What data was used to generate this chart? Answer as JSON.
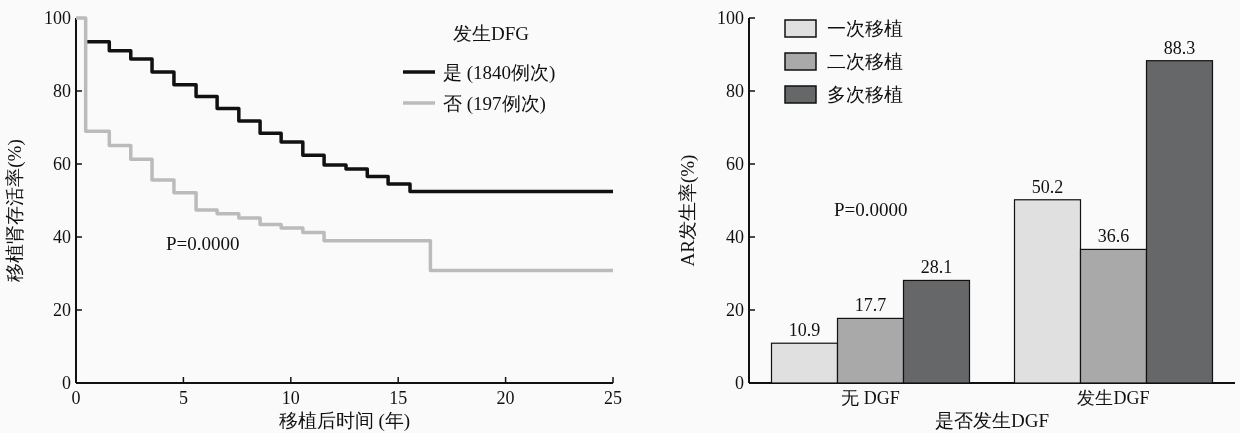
{
  "chart_data": [
    {
      "type": "step",
      "xlabel": "移植后时间 (年)",
      "ylabel": "移植肾存活率(%)",
      "legend_title": "发生DFG",
      "legend": "top right",
      "xlim": [
        0,
        25
      ],
      "xticks": [
        0,
        5,
        10,
        15,
        20,
        25
      ],
      "ylim": [
        0,
        100
      ],
      "yticks": [
        0,
        20,
        40,
        60,
        80,
        100
      ],
      "annotations": [
        "P=0.0000"
      ],
      "series": [
        {
          "name": "是 (1840例次)",
          "color": "#111111",
          "x": [
            0.45,
            1.55,
            2.55,
            3.54,
            4.56,
            5.59,
            6.57,
            7.58,
            8.57,
            9.55,
            10.56,
            11.55,
            12.57,
            13.56,
            14.53,
            15.55,
            25
          ],
          "values": [
            93.5,
            91,
            88.8,
            85.2,
            81.7,
            78.5,
            75.2,
            71.8,
            68.4,
            66,
            62.4,
            59.7,
            58.6,
            56.6,
            54.5,
            52.5,
            52.5
          ]
        },
        {
          "name": "否 (197例次)",
          "color": "#bbbbbb",
          "x": [
            0,
            0.45,
            1.55,
            2.55,
            3.54,
            4.56,
            5.59,
            6.57,
            7.58,
            8.57,
            9.55,
            10.56,
            11.55,
            16.5,
            25
          ],
          "values": [
            100,
            69,
            65.1,
            61.3,
            55.6,
            52.1,
            47.4,
            46.4,
            45.2,
            43.4,
            42.5,
            41.2,
            39,
            30.8,
            30.8
          ]
        }
      ]
    },
    {
      "type": "bar",
      "xlabel": "是否发生DGF",
      "ylabel": "AR发生率(%)",
      "legend": "top left",
      "data_labels": true,
      "categories": [
        "无 DGF",
        "发生DGF"
      ],
      "ylim": [
        0,
        100
      ],
      "yticks": [
        0,
        20,
        40,
        60,
        80,
        100
      ],
      "annotations": [
        "P=0.0000"
      ],
      "series": [
        {
          "name": "一次移植",
          "color": "#e0e0e0",
          "values": [
            10.9,
            50.2
          ]
        },
        {
          "name": "二次移植",
          "color": "#a9a9a9",
          "values": [
            17.7,
            36.6
          ]
        },
        {
          "name": "多次移植",
          "color": "#666769",
          "values": [
            28.1,
            88.3
          ]
        }
      ]
    }
  ]
}
